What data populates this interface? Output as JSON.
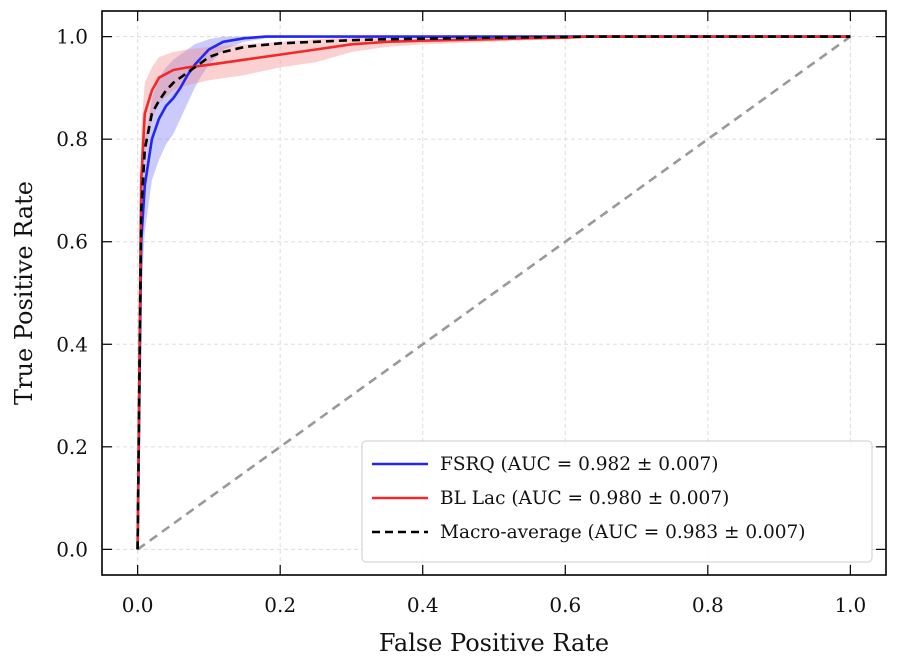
{
  "chart_data": {
    "type": "line",
    "title": "",
    "xlabel": "False Positive Rate",
    "ylabel": "True Positive Rate",
    "xlim": [
      -0.05,
      1.05
    ],
    "ylim": [
      -0.05,
      1.05
    ],
    "xticks": [
      0.0,
      0.2,
      0.4,
      0.6,
      0.8,
      1.0
    ],
    "yticks": [
      0.0,
      0.2,
      0.4,
      0.6,
      0.8,
      1.0
    ],
    "xtick_labels": [
      "0.0",
      "0.2",
      "0.4",
      "0.6",
      "0.8",
      "1.0"
    ],
    "ytick_labels": [
      "0.0",
      "0.2",
      "0.4",
      "0.6",
      "0.8",
      "1.0"
    ],
    "grid": true,
    "legend_position": "lower-right",
    "series": [
      {
        "name": "FSRQ (AUC = 0.982 ± 0.007)",
        "color": "#2626f0",
        "band_color": "#7b7bf5",
        "style": "solid",
        "x": [
          0.0,
          0.005,
          0.01,
          0.02,
          0.03,
          0.04,
          0.05,
          0.06,
          0.07,
          0.08,
          0.09,
          0.1,
          0.12,
          0.15,
          0.18,
          0.25,
          0.35,
          0.5,
          0.63,
          0.8,
          1.0
        ],
        "y": [
          0.0,
          0.6,
          0.71,
          0.8,
          0.84,
          0.865,
          0.88,
          0.9,
          0.925,
          0.945,
          0.96,
          0.975,
          0.99,
          0.997,
          1.0,
          1.0,
          1.0,
          1.0,
          1.0,
          1.0,
          1.0
        ],
        "band_lower": [
          0.0,
          0.5,
          0.62,
          0.72,
          0.76,
          0.79,
          0.81,
          0.84,
          0.87,
          0.9,
          0.925,
          0.945,
          0.975,
          0.99,
          0.997,
          1.0,
          1.0,
          1.0,
          1.0,
          1.0,
          1.0
        ],
        "band_upper": [
          0.0,
          0.7,
          0.8,
          0.88,
          0.92,
          0.94,
          0.955,
          0.965,
          0.975,
          0.985,
          0.99,
          0.995,
          1.0,
          1.0,
          1.0,
          1.0,
          1.0,
          1.0,
          1.0,
          1.0,
          1.0
        ]
      },
      {
        "name": "BL Lac (AUC = 0.980 ± 0.007)",
        "color": "#ee2b2b",
        "band_color": "#f58a8a",
        "style": "solid",
        "x": [
          0.0,
          0.005,
          0.01,
          0.02,
          0.03,
          0.05,
          0.07,
          0.1,
          0.15,
          0.2,
          0.25,
          0.3,
          0.35,
          0.4,
          0.5,
          0.55,
          0.6,
          0.63,
          0.8,
          1.0
        ],
        "y": [
          0.0,
          0.72,
          0.85,
          0.895,
          0.92,
          0.935,
          0.94,
          0.945,
          0.955,
          0.965,
          0.975,
          0.985,
          0.99,
          0.992,
          0.995,
          0.997,
          0.998,
          1.0,
          1.0,
          1.0
        ],
        "band_lower": [
          0.0,
          0.62,
          0.78,
          0.84,
          0.87,
          0.895,
          0.905,
          0.915,
          0.925,
          0.94,
          0.95,
          0.97,
          0.98,
          0.985,
          0.99,
          0.993,
          0.996,
          1.0,
          1.0,
          1.0
        ],
        "band_upper": [
          0.0,
          0.82,
          0.91,
          0.94,
          0.96,
          0.97,
          0.975,
          0.98,
          0.985,
          0.99,
          0.995,
          0.998,
          1.0,
          1.0,
          1.0,
          1.0,
          1.0,
          1.0,
          1.0,
          1.0
        ]
      },
      {
        "name": "Macro-average (AUC = 0.983 ± 0.007)",
        "color": "#000000",
        "style": "dashed",
        "x": [
          0.0,
          0.005,
          0.01,
          0.02,
          0.03,
          0.04,
          0.05,
          0.07,
          0.09,
          0.1,
          0.12,
          0.15,
          0.2,
          0.25,
          0.3,
          0.35,
          0.4,
          0.5,
          0.63,
          0.8,
          1.0
        ],
        "y": [
          0.0,
          0.66,
          0.78,
          0.85,
          0.875,
          0.895,
          0.91,
          0.93,
          0.95,
          0.96,
          0.97,
          0.98,
          0.987,
          0.99,
          0.993,
          0.995,
          0.996,
          0.998,
          1.0,
          1.0,
          1.0
        ]
      },
      {
        "name": "",
        "color": "#999999",
        "style": "dashed",
        "x": [
          0.0,
          1.0
        ],
        "y": [
          0.0,
          1.0
        ]
      }
    ]
  }
}
